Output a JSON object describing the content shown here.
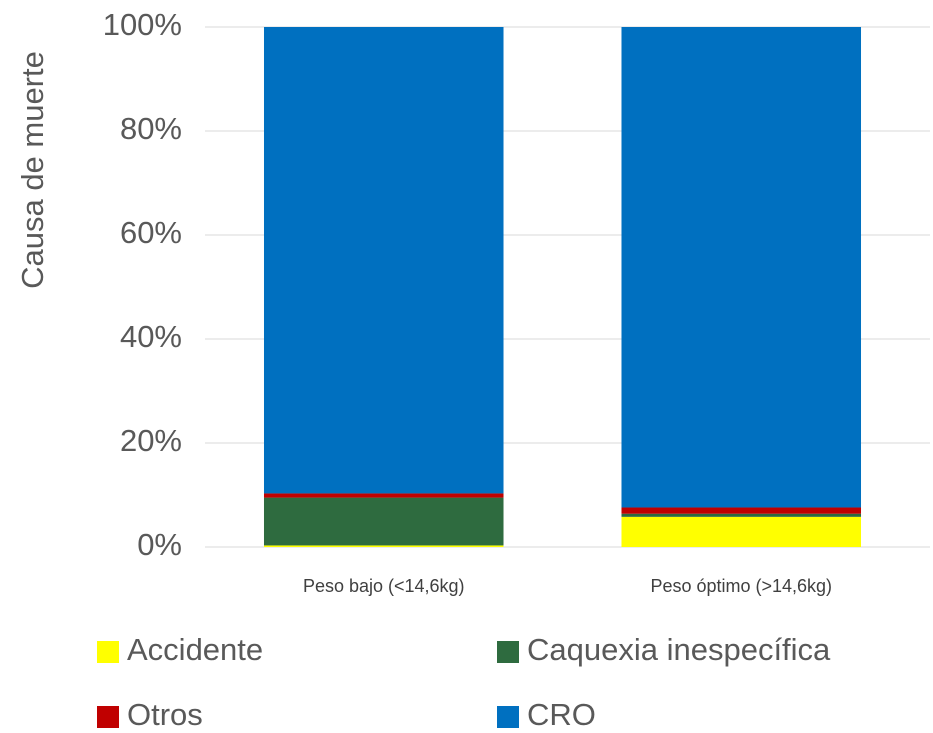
{
  "chart_data": {
    "type": "stacked_bar",
    "y_label": "Causa de muerte",
    "categories": [
      "Peso bajo (<14,6kg)",
      "Peso óptimo (>14,6kg)"
    ],
    "series": [
      {
        "name": "Accidente",
        "color": "#ffff00",
        "values": [
          0.3,
          5.8
        ]
      },
      {
        "name": "Caquexia inespecífica",
        "color": "#2e6b3f",
        "values": [
          9.2,
          0.6
        ]
      },
      {
        "name": "Otros",
        "color": "#c00000",
        "values": [
          0.8,
          1.2
        ]
      },
      {
        "name": "CRO",
        "color": "#0070c0",
        "values": [
          89.7,
          92.4
        ]
      }
    ],
    "ylim": [
      0,
      100
    ],
    "yticks": [
      {
        "value": 0,
        "label": "0%"
      },
      {
        "value": 20,
        "label": "20%"
      },
      {
        "value": 40,
        "label": "40%"
      },
      {
        "value": 60,
        "label": "60%"
      },
      {
        "value": 80,
        "label": "80%"
      },
      {
        "value": 100,
        "label": "100%"
      }
    ],
    "grid": true
  }
}
